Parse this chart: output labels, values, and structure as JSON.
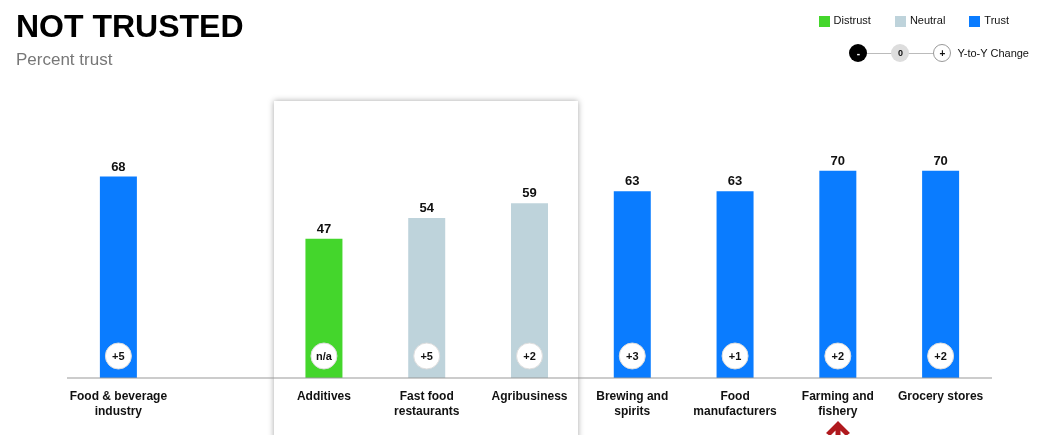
{
  "chart_data": {
    "type": "bar",
    "title": "NOT TRUSTED",
    "subtitle": "Percent trust",
    "categories": [
      "Food & beverage industry",
      null,
      "Additives",
      "Fast food restaurants",
      "Agribusiness",
      "Brewing and spirits",
      "Food manufacturers",
      "Farming and fishery",
      "Grocery stores"
    ],
    "stacked": true,
    "series": [
      {
        "name": "Distrust",
        "color": "#44d62c",
        "values": [
          null,
          null,
          47,
          null,
          null,
          null,
          null,
          null,
          null
        ]
      },
      {
        "name": "Neutral",
        "color": "#bed3db",
        "values": [
          null,
          null,
          null,
          54,
          59,
          null,
          null,
          null,
          null
        ]
      },
      {
        "name": "Trust",
        "color": "#0a7cff",
        "values": [
          68,
          null,
          null,
          null,
          null,
          63,
          63,
          70,
          70
        ]
      }
    ],
    "data_labels": true,
    "legend": "top right",
    "grid": false,
    "tick_labels": "x",
    "annotations": [
      {
        "text": "+5",
        "x": "Food & beverage industry",
        "y": 0
      },
      {
        "text": "n/a",
        "x": "Additives",
        "y": 0
      },
      {
        "text": "+5",
        "x": "Fast food restaurants",
        "y": 0
      },
      {
        "text": "+2",
        "x": "Agribusiness",
        "y": 0
      },
      {
        "text": "+3",
        "x": "Brewing and spirits",
        "y": 0
      },
      {
        "text": "+1",
        "x": "Food manufacturers",
        "y": 0
      },
      {
        "text": "+2",
        "x": "Farming and fishery",
        "y": 0
      },
      {
        "text": "+2",
        "x": "Grocery stores",
        "y": 0
      },
      "-",
      "0",
      "+",
      "Y-to-Y Change"
    ]
  }
}
